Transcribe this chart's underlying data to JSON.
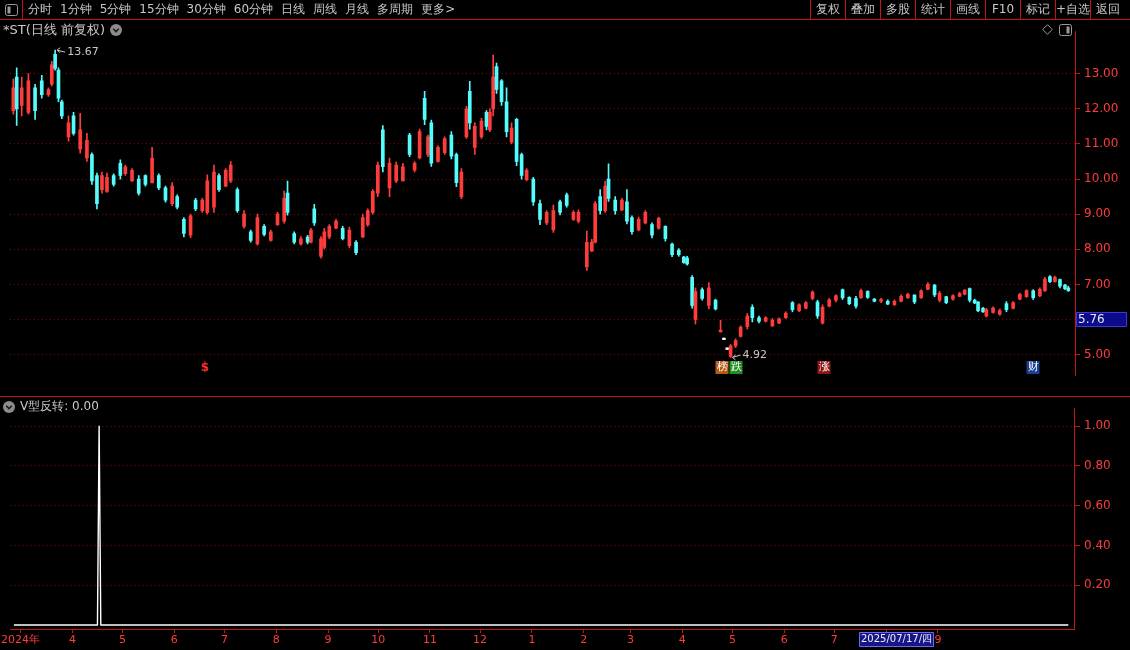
{
  "chart_data": [
    {
      "type": "other",
      "annotations": [
        "分时",
        "1分钟",
        "5分钟",
        "15分钟",
        "30分钟",
        "60分钟",
        "日线",
        "周线",
        "月线",
        "多周期",
        "更多>"
      ]
    },
    {
      "type": "other",
      "annotations": [
        "复权",
        "叠加",
        "多股",
        "统计",
        "画线",
        "F10",
        "标记",
        "+自选",
        "返回"
      ]
    },
    {
      "type": "candlestick",
      "title": "*ST(日线 前复权)",
      "x": [
        "2024-02-26",
        "2024-02-28",
        "2024-03-02",
        "2024-03-06",
        "2024-03-10",
        "2024-03-14",
        "2024-03-18",
        "2024-03-20",
        "2024-03-22",
        "2024-03-24",
        "2024-03-26",
        "2024-03-30",
        "2024-04-02",
        "2024-04-06",
        "2024-04-10",
        "2024-04-13",
        "2024-04-16",
        "2024-04-19",
        "2024-04-22",
        "2024-04-26",
        "2024-04-30",
        "2024-05-03",
        "2024-05-07",
        "2024-05-11",
        "2024-05-15",
        "2024-05-19",
        "2024-05-23",
        "2024-05-27",
        "2024-05-31",
        "2024-06-03",
        "2024-06-07",
        "2024-06-11",
        "2024-06-14",
        "2024-06-18",
        "2024-06-21",
        "2024-06-25",
        "2024-06-28",
        "2024-07-02",
        "2024-07-05",
        "2024-07-09",
        "2024-07-13",
        "2024-07-17",
        "2024-07-21",
        "2024-07-25",
        "2024-07-29",
        "2024-08-02",
        "2024-08-06",
        "2024-08-08",
        "2024-08-12",
        "2024-08-16",
        "2024-08-20",
        "2024-08-22",
        "2024-08-24",
        "2024-08-28",
        "2024-08-30",
        "2024-09-02",
        "2024-09-06",
        "2024-09-10",
        "2024-09-14",
        "2024-09-18",
        "2024-09-22",
        "2024-09-25",
        "2024-09-28",
        "2024-10-01",
        "2024-10-04",
        "2024-10-08",
        "2024-10-12",
        "2024-10-16",
        "2024-10-20",
        "2024-10-23",
        "2024-10-26",
        "2024-10-29",
        "2024-10-31",
        "2024-11-02",
        "2024-11-06",
        "2024-11-10",
        "2024-11-14",
        "2024-11-17",
        "2024-11-20",
        "2024-11-23",
        "2024-11-25",
        "2024-11-28",
        "2024-12-02",
        "2024-12-05",
        "2024-12-07",
        "2024-12-09",
        "2024-12-11",
        "2024-12-14",
        "2024-12-17",
        "2024-12-20",
        "2024-12-23",
        "2024-12-26",
        "2024-12-29",
        "2025-01-02",
        "2025-01-06",
        "2025-01-10",
        "2025-01-14",
        "2025-01-18",
        "2025-01-22",
        "2025-01-26",
        "2025-01-29",
        "2025-02-03",
        "2025-02-06",
        "2025-02-08",
        "2025-02-11",
        "2025-02-14",
        "2025-02-16",
        "2025-02-20",
        "2025-02-24",
        "2025-02-27",
        "2025-03-02",
        "2025-03-06",
        "2025-03-10",
        "2025-03-14",
        "2025-03-18",
        "2025-03-22",
        "2025-03-26",
        "2025-03-30",
        "2025-04-02",
        "2025-04-04",
        "2025-04-07",
        "2025-04-09",
        "2025-04-13",
        "2025-04-17",
        "2025-04-21",
        "2025-04-24",
        "2025-04-26",
        "2025-04-28",
        "2025-04-30",
        "2025-05-03",
        "2025-05-06",
        "2025-05-10",
        "2025-05-13",
        "2025-05-17",
        "2025-05-21",
        "2025-05-25",
        "2025-05-29",
        "2025-06-02",
        "2025-06-06",
        "2025-06-10",
        "2025-06-14",
        "2025-06-18",
        "2025-06-21",
        "2025-06-24",
        "2025-06-28",
        "2025-07-02",
        "2025-07-06",
        "2025-07-10",
        "2025-07-14",
        "2025-07-17",
        "2025-07-21",
        "2025-07-25",
        "2025-07-29",
        "2025-08-02",
        "2025-08-06",
        "2025-08-10",
        "2025-08-14",
        "2025-08-18",
        "2025-08-22",
        "2025-08-26",
        "2025-08-30",
        "2025-09-02",
        "2025-09-06",
        "2025-09-10",
        "2025-09-14",
        "2025-09-17",
        "2025-09-20",
        "2025-09-23",
        "2025-09-25",
        "2025-09-28",
        "2025-09-30",
        "2025-10-04",
        "2025-10-08",
        "2025-10-12",
        "2025-10-16",
        "2025-10-20",
        "2025-10-24",
        "2025-10-28",
        "2025-11-01",
        "2025-11-04",
        "2025-11-07",
        "2025-11-10",
        "2025-11-13",
        "2025-11-16",
        "2025-11-18"
      ],
      "ohlc": [
        [
          11.95,
          12.85,
          11.85,
          12.6
        ],
        [
          12.9,
          13.17,
          11.53,
          12.0
        ],
        [
          12.1,
          12.9,
          11.8,
          12.6
        ],
        [
          11.9,
          13.0,
          11.85,
          12.8
        ],
        [
          12.6,
          12.7,
          11.7,
          11.95
        ],
        [
          12.8,
          12.95,
          12.3,
          12.4
        ],
        [
          12.4,
          12.6,
          12.35,
          12.55
        ],
        [
          12.7,
          13.35,
          12.65,
          13.25
        ],
        [
          13.55,
          13.67,
          13.1,
          13.15
        ],
        [
          13.1,
          13.17,
          12.2,
          12.3
        ],
        [
          12.2,
          12.25,
          11.72,
          11.8
        ],
        [
          11.2,
          11.8,
          11.08,
          11.6
        ],
        [
          11.8,
          11.9,
          11.25,
          11.3
        ],
        [
          10.85,
          11.87,
          10.74,
          11.4
        ],
        [
          10.6,
          11.3,
          10.5,
          11.1
        ],
        [
          10.7,
          10.75,
          9.85,
          9.95
        ],
        [
          10.1,
          10.17,
          9.15,
          9.3
        ],
        [
          9.7,
          10.2,
          9.6,
          10.1
        ],
        [
          9.65,
          10.17,
          9.62,
          10.05
        ],
        [
          10.1,
          10.15,
          9.8,
          9.85
        ],
        [
          10.45,
          10.55,
          10.0,
          10.1
        ],
        [
          10.15,
          10.4,
          10.1,
          10.35
        ],
        [
          9.95,
          10.3,
          9.93,
          10.25
        ],
        [
          10.0,
          10.1,
          9.54,
          9.6
        ],
        [
          10.1,
          10.12,
          9.8,
          9.85
        ],
        [
          9.9,
          10.9,
          9.88,
          10.6
        ],
        [
          10.1,
          10.15,
          9.7,
          9.75
        ],
        [
          9.75,
          9.8,
          9.34,
          9.4
        ],
        [
          9.3,
          9.9,
          9.24,
          9.8
        ],
        [
          9.5,
          9.55,
          9.15,
          9.2
        ],
        [
          8.85,
          8.9,
          8.35,
          8.45
        ],
        [
          8.4,
          9.0,
          8.33,
          8.95
        ],
        [
          9.4,
          9.45,
          9.1,
          9.15
        ],
        [
          9.1,
          9.45,
          9.05,
          9.4
        ],
        [
          9.05,
          10.12,
          9.0,
          9.95
        ],
        [
          9.2,
          10.4,
          9.05,
          10.2
        ],
        [
          10.1,
          10.15,
          9.65,
          9.7
        ],
        [
          9.8,
          10.3,
          9.78,
          10.25
        ],
        [
          9.95,
          10.5,
          9.9,
          10.4
        ],
        [
          9.7,
          9.75,
          9.05,
          9.1
        ],
        [
          8.65,
          9.1,
          8.6,
          9.0
        ],
        [
          8.5,
          8.55,
          8.2,
          8.25
        ],
        [
          8.15,
          9.0,
          8.12,
          8.9
        ],
        [
          8.65,
          8.7,
          8.38,
          8.42
        ],
        [
          8.25,
          8.55,
          8.23,
          8.5
        ],
        [
          8.7,
          9.05,
          8.68,
          9.0
        ],
        [
          8.8,
          9.66,
          8.74,
          9.45
        ],
        [
          9.6,
          9.94,
          8.97,
          9.05
        ],
        [
          8.45,
          8.5,
          8.15,
          8.2
        ],
        [
          8.15,
          8.36,
          8.12,
          8.3
        ],
        [
          8.35,
          8.4,
          8.15,
          8.2
        ],
        [
          8.2,
          8.6,
          8.18,
          8.55
        ],
        [
          9.15,
          9.28,
          8.68,
          8.75
        ],
        [
          7.8,
          8.36,
          7.75,
          8.3
        ],
        [
          8.05,
          8.6,
          8.0,
          8.5
        ],
        [
          8.35,
          8.7,
          8.3,
          8.65
        ],
        [
          8.6,
          8.85,
          8.58,
          8.8
        ],
        [
          8.6,
          8.65,
          8.27,
          8.3
        ],
        [
          8.1,
          8.63,
          8.04,
          8.55
        ],
        [
          8.2,
          8.25,
          7.85,
          7.9
        ],
        [
          8.35,
          9.0,
          8.33,
          8.9
        ],
        [
          8.7,
          9.15,
          8.65,
          9.1
        ],
        [
          9.05,
          9.7,
          9.0,
          9.65
        ],
        [
          9.6,
          10.48,
          9.5,
          10.4
        ],
        [
          11.4,
          11.52,
          10.2,
          10.35
        ],
        [
          9.75,
          10.6,
          9.5,
          10.45
        ],
        [
          9.95,
          10.48,
          9.9,
          10.4
        ],
        [
          9.95,
          10.45,
          9.95,
          10.35
        ],
        [
          11.25,
          11.3,
          10.64,
          10.7
        ],
        [
          10.25,
          10.5,
          10.2,
          10.45
        ],
        [
          10.6,
          11.42,
          10.57,
          11.35
        ],
        [
          12.3,
          12.5,
          11.55,
          11.7
        ],
        [
          10.7,
          11.25,
          10.64,
          11.2
        ],
        [
          11.6,
          11.68,
          10.36,
          10.45
        ],
        [
          10.5,
          10.95,
          10.48,
          10.9
        ],
        [
          10.75,
          11.2,
          10.7,
          11.15
        ],
        [
          11.25,
          11.35,
          10.57,
          10.65
        ],
        [
          10.7,
          10.74,
          9.78,
          9.9
        ],
        [
          9.5,
          10.3,
          9.44,
          10.2
        ],
        [
          11.2,
          12.07,
          11.16,
          12.0
        ],
        [
          12.5,
          12.78,
          11.42,
          11.6
        ],
        [
          10.9,
          11.6,
          10.7,
          11.5
        ],
        [
          11.2,
          11.73,
          11.16,
          11.65
        ],
        [
          11.9,
          11.95,
          11.4,
          11.5
        ],
        [
          11.4,
          12.0,
          11.35,
          11.9
        ],
        [
          12.0,
          13.53,
          11.8,
          12.9
        ],
        [
          13.2,
          13.3,
          12.44,
          12.55
        ],
        [
          12.8,
          12.83,
          12.1,
          12.2
        ],
        [
          12.2,
          12.6,
          11.2,
          11.35
        ],
        [
          11.05,
          11.6,
          11.0,
          11.45
        ],
        [
          11.7,
          11.73,
          10.38,
          10.5
        ],
        [
          10.7,
          10.74,
          10.0,
          10.1
        ],
        [
          9.98,
          10.3,
          9.95,
          10.25
        ],
        [
          10.0,
          10.05,
          9.25,
          9.35
        ],
        [
          9.3,
          9.4,
          8.7,
          8.85
        ],
        [
          8.75,
          9.1,
          8.7,
          9.05
        ],
        [
          8.55,
          9.26,
          8.48,
          9.1
        ],
        [
          9.35,
          9.4,
          8.98,
          9.05
        ],
        [
          9.55,
          9.6,
          9.2,
          9.25
        ],
        [
          8.85,
          9.1,
          8.82,
          9.05
        ],
        [
          8.8,
          9.12,
          8.75,
          9.05
        ],
        [
          7.5,
          8.52,
          7.4,
          8.2
        ],
        [
          7.95,
          8.28,
          7.93,
          8.2
        ],
        [
          8.2,
          9.36,
          8.18,
          9.3
        ],
        [
          9.5,
          9.7,
          9.0,
          9.1
        ],
        [
          9.1,
          9.94,
          9.05,
          9.8
        ],
        [
          10.0,
          10.43,
          9.36,
          9.45
        ],
        [
          9.4,
          9.5,
          9.0,
          9.1
        ],
        [
          9.12,
          9.45,
          9.1,
          9.4
        ],
        [
          9.35,
          9.7,
          8.72,
          8.8
        ],
        [
          8.9,
          8.95,
          8.43,
          8.5
        ],
        [
          8.55,
          8.92,
          8.52,
          8.85
        ],
        [
          8.75,
          9.1,
          8.72,
          9.05
        ],
        [
          8.7,
          8.75,
          8.32,
          8.4
        ],
        [
          8.6,
          8.92,
          8.57,
          8.88
        ],
        [
          8.65,
          8.67,
          8.23,
          8.3
        ],
        [
          8.15,
          8.18,
          7.79,
          7.85
        ],
        [
          7.98,
          8.02,
          7.8,
          7.85
        ],
        [
          7.78,
          7.8,
          7.6,
          7.62
        ],
        [
          7.75,
          7.8,
          7.55,
          7.58
        ],
        [
          7.2,
          7.25,
          6.32,
          6.4
        ],
        [
          6.0,
          6.9,
          5.87,
          6.8
        ],
        [
          6.85,
          6.9,
          6.55,
          6.6
        ],
        [
          6.4,
          7.05,
          6.3,
          6.9
        ],
        [
          6.55,
          6.58,
          6.27,
          6.3
        ],
        [
          5.65,
          5.98,
          5.64,
          5.7
        ],
        [
          5.47,
          5.47,
          5.43,
          5.43
        ],
        [
          5.19,
          5.19,
          5.15,
          5.15
        ],
        [
          4.95,
          5.29,
          4.92,
          5.25
        ],
        [
          5.25,
          5.45,
          5.2,
          5.4
        ],
        [
          5.52,
          5.82,
          5.5,
          5.78
        ],
        [
          5.8,
          6.17,
          5.73,
          6.1
        ],
        [
          6.35,
          6.42,
          5.93,
          6.05
        ],
        [
          6.05,
          6.1,
          5.9,
          5.95
        ],
        [
          5.95,
          6.08,
          5.93,
          6.05
        ],
        [
          5.82,
          6.03,
          5.8,
          5.98
        ],
        [
          5.9,
          6.05,
          5.88,
          6.02
        ],
        [
          6.05,
          6.22,
          6.03,
          6.18
        ],
        [
          6.48,
          6.51,
          6.22,
          6.28
        ],
        [
          6.25,
          6.45,
          6.22,
          6.42
        ],
        [
          6.32,
          6.51,
          6.3,
          6.48
        ],
        [
          6.6,
          6.82,
          6.56,
          6.78
        ],
        [
          6.5,
          6.55,
          6.03,
          6.1
        ],
        [
          5.9,
          6.42,
          5.87,
          6.35
        ],
        [
          6.38,
          6.6,
          6.36,
          6.56
        ],
        [
          6.55,
          6.7,
          6.5,
          6.68
        ],
        [
          6.85,
          6.87,
          6.57,
          6.62
        ],
        [
          6.63,
          6.65,
          6.42,
          6.45
        ],
        [
          6.6,
          6.66,
          6.32,
          6.38
        ],
        [
          6.62,
          6.87,
          6.6,
          6.82
        ],
        [
          6.8,
          6.82,
          6.6,
          6.63
        ],
        [
          6.58,
          6.6,
          6.5,
          6.52
        ],
        [
          6.52,
          6.6,
          6.48,
          6.57
        ],
        [
          6.52,
          6.56,
          6.42,
          6.44
        ],
        [
          6.42,
          6.56,
          6.4,
          6.52
        ],
        [
          6.52,
          6.7,
          6.5,
          6.66
        ],
        [
          6.62,
          6.75,
          6.6,
          6.72
        ],
        [
          6.7,
          6.7,
          6.45,
          6.5
        ],
        [
          6.62,
          6.85,
          6.6,
          6.82
        ],
        [
          6.86,
          7.05,
          6.85,
          7.0
        ],
        [
          6.98,
          7.0,
          6.65,
          6.7
        ],
        [
          6.55,
          6.8,
          6.5,
          6.75
        ],
        [
          6.65,
          6.66,
          6.45,
          6.48
        ],
        [
          6.58,
          6.7,
          6.55,
          6.68
        ],
        [
          6.66,
          6.78,
          6.65,
          6.74
        ],
        [
          6.72,
          6.86,
          6.7,
          6.83
        ],
        [
          6.88,
          6.9,
          6.5,
          6.55
        ],
        [
          6.55,
          6.58,
          6.45,
          6.47
        ],
        [
          6.5,
          6.51,
          6.22,
          6.25
        ],
        [
          6.32,
          6.35,
          6.2,
          6.22
        ],
        [
          6.1,
          6.32,
          6.07,
          6.28
        ],
        [
          6.2,
          6.36,
          6.18,
          6.33
        ],
        [
          6.15,
          6.3,
          6.12,
          6.25
        ],
        [
          6.45,
          6.51,
          6.22,
          6.28
        ],
        [
          6.32,
          6.51,
          6.3,
          6.48
        ],
        [
          6.58,
          6.75,
          6.56,
          6.72
        ],
        [
          6.65,
          6.85,
          6.63,
          6.82
        ],
        [
          6.82,
          6.85,
          6.57,
          6.62
        ],
        [
          6.68,
          6.9,
          6.65,
          6.86
        ],
        [
          6.82,
          7.2,
          6.8,
          7.15
        ],
        [
          7.22,
          7.25,
          7.05,
          7.08
        ],
        [
          7.08,
          7.24,
          7.06,
          7.2
        ],
        [
          7.14,
          7.15,
          6.9,
          6.95
        ],
        [
          6.98,
          7.0,
          6.85,
          6.88
        ],
        [
          6.9,
          6.95,
          6.8,
          6.82
        ]
      ],
      "colors": [
        "#ff3c3c",
        "#54fcfc",
        "#ff3c3c",
        "#ff3c3c",
        "#54fcfc",
        "#54fcfc",
        "#ff3c3c",
        "#ff3c3c",
        "#54fcfc",
        "#54fcfc",
        "#54fcfc",
        "#ff3c3c",
        "#54fcfc",
        "#ff3c3c",
        "#ff3c3c",
        "#54fcfc",
        "#54fcfc",
        "#ff3c3c",
        "#ff3c3c",
        "#54fcfc",
        "#54fcfc",
        "#ff3c3c",
        "#ff3c3c",
        "#54fcfc",
        "#54fcfc",
        "#ff3c3c",
        "#54fcfc",
        "#54fcfc",
        "#ff3c3c",
        "#54fcfc",
        "#54fcfc",
        "#ff3c3c",
        "#54fcfc",
        "#ff3c3c",
        "#ff3c3c",
        "#ff3c3c",
        "#54fcfc",
        "#ff3c3c",
        "#ff3c3c",
        "#54fcfc",
        "#ff3c3c",
        "#54fcfc",
        "#ff3c3c",
        "#54fcfc",
        "#ff3c3c",
        "#ff3c3c",
        "#ff3c3c",
        "#54fcfc",
        "#54fcfc",
        "#ff3c3c",
        "#54fcfc",
        "#ff3c3c",
        "#54fcfc",
        "#ff3c3c",
        "#ff3c3c",
        "#ff3c3c",
        "#ff3c3c",
        "#54fcfc",
        "#ff3c3c",
        "#54fcfc",
        "#ff3c3c",
        "#ff3c3c",
        "#ff3c3c",
        "#ff3c3c",
        "#54fcfc",
        "#ff3c3c",
        "#ff3c3c",
        "#ff3c3c",
        "#54fcfc",
        "#ff3c3c",
        "#ff3c3c",
        "#54fcfc",
        "#ff3c3c",
        "#54fcfc",
        "#ff3c3c",
        "#ff3c3c",
        "#54fcfc",
        "#54fcfc",
        "#ff3c3c",
        "#ff3c3c",
        "#54fcfc",
        "#ff3c3c",
        "#ff3c3c",
        "#54fcfc",
        "#ff3c3c",
        "#ff3c3c",
        "#54fcfc",
        "#54fcfc",
        "#54fcfc",
        "#ff3c3c",
        "#54fcfc",
        "#54fcfc",
        "#ff3c3c",
        "#54fcfc",
        "#54fcfc",
        "#ff3c3c",
        "#ff3c3c",
        "#54fcfc",
        "#54fcfc",
        "#ff3c3c",
        "#ff3c3c",
        "#ff3c3c",
        "#ff3c3c",
        "#ff3c3c",
        "#54fcfc",
        "#ff3c3c",
        "#54fcfc",
        "#54fcfc",
        "#ff3c3c",
        "#54fcfc",
        "#54fcfc",
        "#ff3c3c",
        "#ff3c3c",
        "#54fcfc",
        "#ff3c3c",
        "#54fcfc",
        "#54fcfc",
        "#54fcfc",
        "#54fcfc",
        "#54fcfc",
        "#54fcfc",
        "#ff3c3c",
        "#54fcfc",
        "#ff3c3c",
        "#54fcfc",
        "#ff3c3c",
        "#ffffff",
        "#ffffff",
        "#ff3c3c",
        "#ff3c3c",
        "#ff3c3c",
        "#ff3c3c",
        "#54fcfc",
        "#54fcfc",
        "#ff3c3c",
        "#ff3c3c",
        "#ff3c3c",
        "#ff3c3c",
        "#54fcfc",
        "#ff3c3c",
        "#ff3c3c",
        "#ff3c3c",
        "#54fcfc",
        "#ff3c3c",
        "#ff3c3c",
        "#ff3c3c",
        "#54fcfc",
        "#54fcfc",
        "#54fcfc",
        "#ff3c3c",
        "#54fcfc",
        "#54fcfc",
        "#ff3c3c",
        "#54fcfc",
        "#ff3c3c",
        "#ff3c3c",
        "#ff3c3c",
        "#54fcfc",
        "#ff3c3c",
        "#ff3c3c",
        "#54fcfc",
        "#ff3c3c",
        "#54fcfc",
        "#ff3c3c",
        "#ff3c3c",
        "#ff3c3c",
        "#54fcfc",
        "#54fcfc",
        "#54fcfc",
        "#54fcfc",
        "#ff3c3c",
        "#ff3c3c",
        "#ff3c3c",
        "#54fcfc",
        "#ff3c3c",
        "#ff3c3c",
        "#ff3c3c",
        "#54fcfc",
        "#ff3c3c",
        "#ff3c3c",
        "#54fcfc",
        "#ff3c3c",
        "#54fcfc",
        "#54fcfc",
        "#54fcfc"
      ],
      "xlim": [
        "2024-02-24",
        "2025-11-22"
      ],
      "ylim": [
        4.42,
        14.21
      ],
      "yticks": [
        {
          "value": 5,
          "label": "5.00"
        },
        {
          "value": 6,
          "label": null
        },
        {
          "value": 7,
          "label": "7.00"
        },
        {
          "value": 8,
          "label": "8.00"
        },
        {
          "value": 9,
          "label": "9.00"
        },
        {
          "value": 10,
          "label": "10.00"
        },
        {
          "value": 11,
          "label": "11.00"
        },
        {
          "value": 12,
          "label": "12.00"
        },
        {
          "value": 13,
          "label": "13.00"
        }
      ],
      "grid": "y",
      "tick_labels": "y",
      "annotations": [
        {
          "text": "13.67",
          "x": "2024-03-22",
          "y": 13.67
        },
        {
          "text": "4.92",
          "x": "2025-04-30",
          "y": 4.92
        },
        "5.76",
        "$",
        "榜",
        "跌",
        "涨",
        "财"
      ]
    },
    {
      "type": "line",
      "title": "V型反转: 0.00",
      "x": [
        "2024-02-26",
        "2024-04-16",
        "2024-04-17",
        "2024-04-18",
        "2025-11-18"
      ],
      "values": [
        0,
        0,
        1,
        0,
        0
      ],
      "color": "#ffffff",
      "xlim": [
        "2024-02-24",
        "2025-11-22"
      ],
      "xticks": [
        {
          "value": "2024-03-01",
          "label": "2024年"
        },
        {
          "value": "2024-04-01",
          "label": "4"
        },
        {
          "value": "2024-05-01",
          "label": "5"
        },
        {
          "value": "2024-06-01",
          "label": "6"
        },
        {
          "value": "2024-07-01",
          "label": "7"
        },
        {
          "value": "2024-08-01",
          "label": "8"
        },
        {
          "value": "2024-09-01",
          "label": "9"
        },
        {
          "value": "2024-10-01",
          "label": "10"
        },
        {
          "value": "2024-11-01",
          "label": "11"
        },
        {
          "value": "2024-12-01",
          "label": "12"
        },
        {
          "value": "2025-01-01",
          "label": "1"
        },
        {
          "value": "2025-02-01",
          "label": "2"
        },
        {
          "value": "2025-03-01",
          "label": "3"
        },
        {
          "value": "2025-04-01",
          "label": "4"
        },
        {
          "value": "2025-05-01",
          "label": "5"
        },
        {
          "value": "2025-06-01",
          "label": "6"
        },
        {
          "value": "2025-07-01",
          "label": "7"
        },
        {
          "value": "2025-08-01",
          "label": null
        },
        {
          "value": "2025-09-01",
          "label": "9"
        }
      ],
      "ylim": [
        -0.02,
        1.09
      ],
      "yticks": [
        {
          "value": 0.2,
          "label": "0.20"
        },
        {
          "value": 0.4,
          "label": "0.40"
        },
        {
          "value": 0.6,
          "label": "0.60"
        },
        {
          "value": 0.8,
          "label": "0.80"
        },
        {
          "value": 1.0,
          "label": "1.00"
        }
      ],
      "grid": "y",
      "annotations": [
        "2025/07/17/四"
      ]
    }
  ]
}
